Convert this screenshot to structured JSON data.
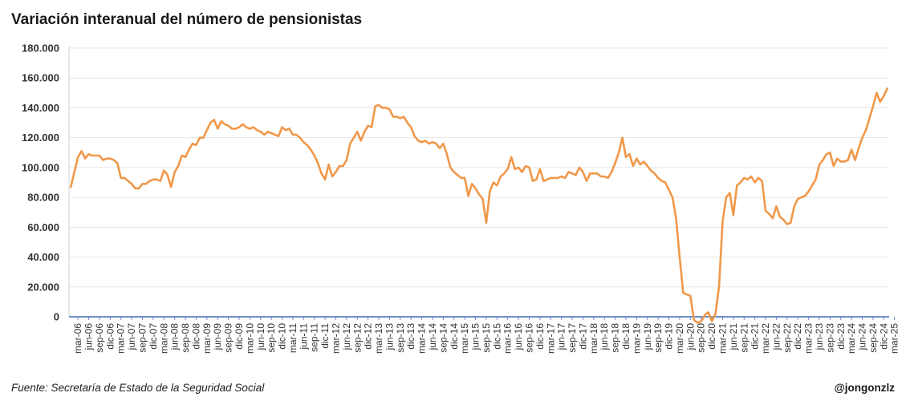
{
  "title": "Variación interanual del número de pensionistas",
  "source": "Fuente: Secretaría de Estado de la Seguridad Social",
  "author": "@jongonzlz",
  "colors": {
    "line": "#F0984A",
    "axis": "#6B8FC9",
    "grid": "#E6E6E6"
  },
  "chart_data": {
    "type": "line",
    "title": "Variación interanual del número de pensionistas",
    "xlabel": "",
    "ylabel": "",
    "ylim": [
      0,
      180000
    ],
    "yticks": [
      0,
      20000,
      40000,
      60000,
      80000,
      100000,
      120000,
      140000,
      160000,
      180000
    ],
    "ytick_labels": [
      "0",
      "20.000",
      "40.000",
      "60.000",
      "80.000",
      "100.000",
      "120.000",
      "140.000",
      "160.000",
      "180.000"
    ],
    "grid": true,
    "x_start": "ene-06",
    "x_end": "mar-25",
    "x_tick_labels": [
      "mar-06",
      "jun-06",
      "sep-06",
      "dic-06",
      "mar-07",
      "jun-07",
      "sep-07",
      "dic-07",
      "mar-08",
      "jun-08",
      "sep-08",
      "dic-08",
      "mar-09",
      "jun-09",
      "sep-09",
      "dic-09",
      "mar-10",
      "jun-10",
      "sep-10",
      "dic-10",
      "mar-11",
      "jun-11",
      "sep-11",
      "dic-11",
      "mar-12",
      "jun-12",
      "sep-12",
      "dic-12",
      "mar-13",
      "jun-13",
      "sep-13",
      "dic-13",
      "mar-14",
      "jun-14",
      "sep-14",
      "dic-14",
      "mar-15",
      "jun-15",
      "sep-15",
      "dic-15",
      "mar-16",
      "jun-16",
      "sep-16",
      "dic-16",
      "mar-17",
      "jun-17",
      "sep-17",
      "dic-17",
      "mar-18",
      "jun-18",
      "sep-18",
      "dic-18",
      "mar-19",
      "jun-19",
      "sep-19",
      "dic-19",
      "mar-20",
      "jun-20",
      "sep-20",
      "dic-20",
      "mar-21",
      "jun-21",
      "sep-21",
      "dic-21",
      "mar-22",
      "jun-22",
      "sep-22",
      "dic-22",
      "mar-23",
      "jun-23",
      "sep-23",
      "dic-23",
      "mar-24",
      "jun-24",
      "sep-24",
      "dic-24",
      "mar-25"
    ],
    "series": [
      {
        "values": [
          87000,
          97000,
          107000,
          111000,
          106000,
          109000,
          108000,
          108000,
          108000,
          105000,
          106000,
          106000,
          105000,
          103000,
          93000,
          93000,
          91000,
          89000,
          86000,
          86000,
          89000,
          89000,
          91000,
          92000,
          92000,
          91000,
          98000,
          95000,
          87000,
          97000,
          101000,
          108000,
          107000,
          112000,
          116000,
          115000,
          120000,
          120000,
          125000,
          130000,
          132000,
          126000,
          131000,
          129000,
          128000,
          126000,
          126000,
          127000,
          129000,
          127000,
          126000,
          127000,
          125000,
          124000,
          122000,
          124000,
          123000,
          122000,
          121000,
          127000,
          125000,
          126000,
          122000,
          122000,
          120000,
          117000,
          115000,
          112000,
          108000,
          103000,
          96000,
          92000,
          102000,
          94000,
          97000,
          101000,
          101000,
          105000,
          116000,
          120000,
          124000,
          118000,
          124000,
          128000,
          127000,
          141000,
          142000,
          140000,
          140000,
          139000,
          134000,
          134000,
          133000,
          134000,
          130000,
          127000,
          121000,
          118000,
          117000,
          118000,
          116000,
          117000,
          116000,
          113000,
          116000,
          109000,
          100000,
          97000,
          95000,
          93000,
          93000,
          81000,
          89000,
          86000,
          82000,
          79000,
          63000,
          84000,
          90000,
          88000,
          94000,
          96000,
          99000,
          107000,
          99000,
          100000,
          97000,
          101000,
          100000,
          91000,
          92000,
          99000,
          91000,
          92000,
          93000,
          93000,
          93000,
          94000,
          93000,
          97000,
          96000,
          95000,
          100000,
          97000,
          91000,
          96000,
          96000,
          96000,
          94000,
          94000,
          93000,
          97000,
          103000,
          110000,
          120000,
          107000,
          109000,
          101000,
          106000,
          102000,
          104000,
          101000,
          98000,
          96000,
          93000,
          91000,
          90000,
          85000,
          80000,
          66000,
          40000,
          16000,
          15000,
          14000,
          -2000,
          -4000,
          -3000,
          1000,
          3000,
          -3000,
          2000,
          20000,
          64000,
          80000,
          83000,
          68000,
          88000,
          90000,
          93000,
          92000,
          94000,
          90000,
          93000,
          91000,
          71000,
          69000,
          66000,
          74000,
          67000,
          65000,
          62000,
          63000,
          74000,
          79000,
          80000,
          81000,
          84000,
          88000,
          92000,
          102000,
          105000,
          109000,
          110000,
          101000,
          106000,
          104000,
          104000,
          105000,
          112000,
          105000,
          113000,
          120000,
          125000,
          133000,
          141000,
          150000,
          144000,
          148000,
          153000
        ]
      }
    ]
  }
}
